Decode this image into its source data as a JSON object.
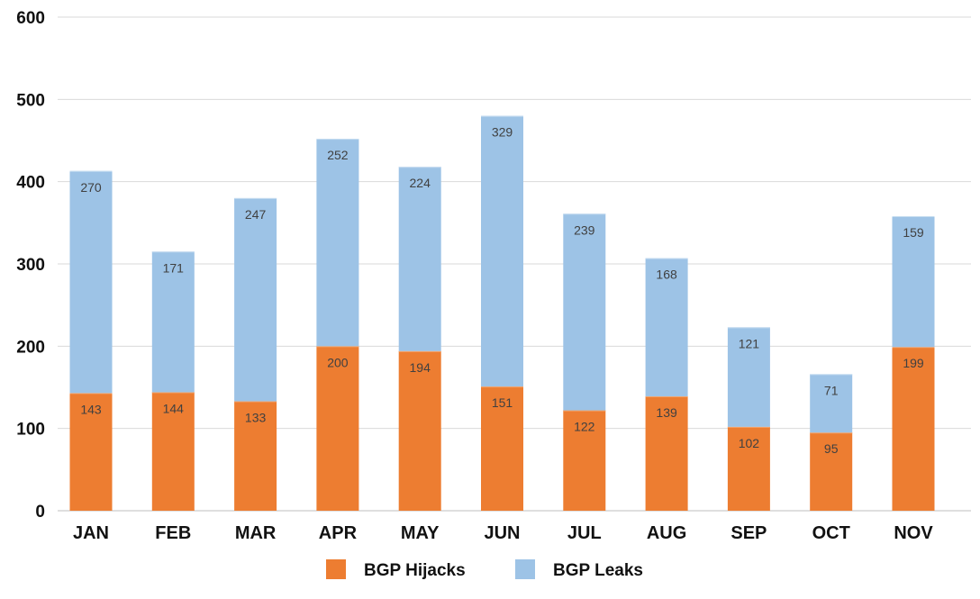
{
  "chart_data": {
    "type": "bar",
    "stacked": true,
    "categories": [
      "JAN",
      "FEB",
      "MAR",
      "APR",
      "MAY",
      "JUN",
      "JUL",
      "AUG",
      "SEP",
      "OCT",
      "NOV"
    ],
    "series": [
      {
        "name": "BGP Hijacks",
        "color": "#ed7d31",
        "values": [
          143,
          144,
          133,
          200,
          194,
          151,
          122,
          139,
          102,
          95,
          199
        ]
      },
      {
        "name": "BGP Leaks",
        "color": "#9dc3e6",
        "values": [
          270,
          171,
          247,
          252,
          224,
          329,
          239,
          168,
          121,
          71,
          159
        ]
      }
    ],
    "ylim": [
      0,
      600
    ],
    "yticks": [
      0,
      100,
      200,
      300,
      400,
      500,
      600
    ],
    "grid": true,
    "legend": "bottom"
  }
}
